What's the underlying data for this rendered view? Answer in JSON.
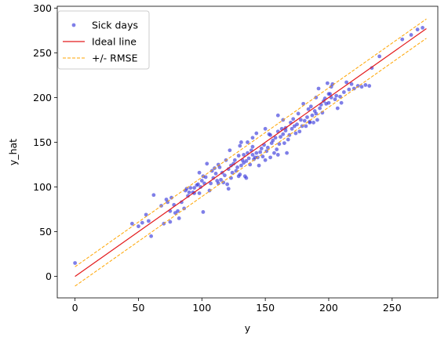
{
  "chart_data": {
    "type": "scatter",
    "xlabel": "y",
    "ylabel": "y_hat",
    "xlim": [
      -14,
      286
    ],
    "ylim": [
      -24,
      302
    ],
    "xticks": [
      0,
      50,
      100,
      150,
      200,
      250
    ],
    "yticks": [
      0,
      50,
      100,
      150,
      200,
      250,
      300
    ],
    "grid": false,
    "legend_position": "top-left",
    "rmse": 10.8,
    "colors": {
      "points": "#3b3bdb",
      "ideal": "#e31a1c",
      "rmse": "#ffa500"
    },
    "series": [
      {
        "name": "Sick days",
        "kind": "points",
        "points": [
          [
            0,
            15
          ],
          [
            45,
            59
          ],
          [
            50,
            56
          ],
          [
            53,
            60
          ],
          [
            56,
            69
          ],
          [
            58,
            62
          ],
          [
            62,
            91
          ],
          [
            68,
            79
          ],
          [
            70,
            59
          ],
          [
            72,
            86
          ],
          [
            73,
            83
          ],
          [
            75,
            73
          ],
          [
            75,
            61
          ],
          [
            76,
            88
          ],
          [
            78,
            80
          ],
          [
            79,
            71
          ],
          [
            81,
            73
          ],
          [
            82,
            65
          ],
          [
            84,
            83
          ],
          [
            86,
            76
          ],
          [
            87,
            96
          ],
          [
            88,
            98
          ],
          [
            89,
            90
          ],
          [
            90,
            94
          ],
          [
            91,
            99
          ],
          [
            93,
            94
          ],
          [
            94,
            99
          ],
          [
            96,
            102
          ],
          [
            98,
            116
          ],
          [
            98,
            93
          ],
          [
            99,
            100
          ],
          [
            100,
            107
          ],
          [
            101,
            72
          ],
          [
            102,
            104
          ],
          [
            103,
            111
          ],
          [
            104,
            126
          ],
          [
            106,
            96
          ],
          [
            107,
            104
          ],
          [
            108,
            118
          ],
          [
            109,
            110
          ],
          [
            110,
            121
          ],
          [
            111,
            115
          ],
          [
            112,
            107
          ],
          [
            113,
            104
          ],
          [
            114,
            122
          ],
          [
            115,
            108
          ],
          [
            116,
            116
          ],
          [
            117,
            105
          ],
          [
            118,
            113
          ],
          [
            119,
            130
          ],
          [
            120,
            103
          ],
          [
            121,
            98
          ],
          [
            121,
            120
          ],
          [
            122,
            141
          ],
          [
            123,
            110
          ],
          [
            124,
            116
          ],
          [
            125,
            126
          ],
          [
            126,
            130
          ],
          [
            127,
            118
          ],
          [
            128,
            122
          ],
          [
            129,
            135
          ],
          [
            130,
            114
          ],
          [
            130,
            146
          ],
          [
            131,
            124
          ],
          [
            132,
            130
          ],
          [
            133,
            136
          ],
          [
            133,
            127
          ],
          [
            134,
            112
          ],
          [
            135,
            129
          ],
          [
            136,
            138
          ],
          [
            136,
            150
          ],
          [
            137,
            132
          ],
          [
            138,
            125
          ],
          [
            139,
            141
          ],
          [
            140,
            145
          ],
          [
            140,
            136
          ],
          [
            141,
            131
          ],
          [
            142,
            133
          ],
          [
            143,
            138
          ],
          [
            144,
            133
          ],
          [
            145,
            124
          ],
          [
            146,
            139
          ],
          [
            147,
            143
          ],
          [
            148,
            134
          ],
          [
            149,
            147
          ],
          [
            150,
            130
          ],
          [
            151,
            140
          ],
          [
            152,
            144
          ],
          [
            153,
            159
          ],
          [
            154,
            133
          ],
          [
            155,
            149
          ],
          [
            156,
            152
          ],
          [
            157,
            138
          ],
          [
            158,
            155
          ],
          [
            159,
            142
          ],
          [
            160,
            162
          ],
          [
            160,
            136
          ],
          [
            161,
            148
          ],
          [
            162,
            156
          ],
          [
            163,
            165
          ],
          [
            164,
            159
          ],
          [
            165,
            149
          ],
          [
            166,
            163
          ],
          [
            167,
            138
          ],
          [
            168,
            153
          ],
          [
            169,
            158
          ],
          [
            170,
            172
          ],
          [
            171,
            165
          ],
          [
            172,
            176
          ],
          [
            173,
            168
          ],
          [
            174,
            160
          ],
          [
            175,
            170
          ],
          [
            176,
            182
          ],
          [
            177,
            162
          ],
          [
            178,
            175
          ],
          [
            179,
            168
          ],
          [
            180,
            193
          ],
          [
            181,
            174
          ],
          [
            182,
            168
          ],
          [
            183,
            178
          ],
          [
            184,
            187
          ],
          [
            185,
            173
          ],
          [
            186,
            190
          ],
          [
            187,
            180
          ],
          [
            188,
            172
          ],
          [
            189,
            185
          ],
          [
            190,
            182
          ],
          [
            191,
            175
          ],
          [
            192,
            210
          ],
          [
            193,
            188
          ],
          [
            194,
            192
          ],
          [
            195,
            183
          ],
          [
            196,
            196
          ],
          [
            197,
            199
          ],
          [
            198,
            193
          ],
          [
            199,
            216
          ],
          [
            200,
            194
          ],
          [
            201,
            204
          ],
          [
            202,
            200
          ],
          [
            203,
            215
          ],
          [
            205,
            198
          ],
          [
            206,
            202
          ],
          [
            207,
            188
          ],
          [
            209,
            201
          ],
          [
            210,
            194
          ],
          [
            212,
            206
          ],
          [
            214,
            217
          ],
          [
            216,
            209
          ],
          [
            218,
            215
          ],
          [
            220,
            210
          ],
          [
            223,
            213
          ],
          [
            226,
            212
          ],
          [
            229,
            214
          ],
          [
            232,
            213
          ],
          [
            234,
            233
          ],
          [
            240,
            246
          ],
          [
            258,
            265
          ],
          [
            265,
            270
          ],
          [
            270,
            276
          ],
          [
            274,
            278
          ],
          [
            60,
            45
          ],
          [
            160,
            180
          ],
          [
            190,
            200
          ],
          [
            113,
            125
          ],
          [
            143,
            160
          ],
          [
            150,
            165
          ],
          [
            164,
            175
          ],
          [
            135,
            110
          ],
          [
            154,
            158
          ],
          [
            166,
            166
          ],
          [
            200,
            204
          ],
          [
            202,
            212
          ],
          [
            185,
            172
          ],
          [
            123,
            124
          ],
          [
            101,
            112
          ],
          [
            94,
            93
          ],
          [
            97,
            103
          ],
          [
            129,
            112
          ],
          [
            140,
            155
          ],
          [
            131,
            150
          ]
        ]
      },
      {
        "name": "Ideal line",
        "kind": "line",
        "style": "solid",
        "x": [
          0,
          277
        ],
        "y": [
          0,
          277
        ]
      },
      {
        "name": "+/- RMSE",
        "kind": "line",
        "style": "dashed",
        "x": [
          0,
          277
        ],
        "offset": 10.8
      }
    ]
  }
}
